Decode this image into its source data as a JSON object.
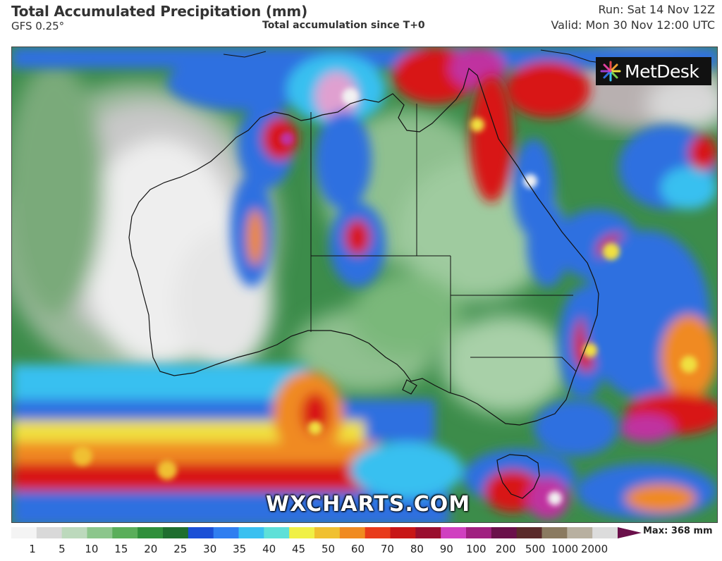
{
  "header": {
    "title": "Total Accumulated Precipitation (mm)",
    "model": "GFS 0.25°",
    "subtitle": "Total accumulation since T+0",
    "run": "Run: Sat 14 Nov 12Z",
    "valid": "Valid: Mon 30 Nov 12:00 UTC"
  },
  "brand": {
    "name": "MetDesk",
    "icon": "metdesk-burst-icon"
  },
  "watermark": "WXCHARTS.COM",
  "legend": {
    "max_label": "Max: 368 mm",
    "ticks": [
      "1",
      "5",
      "10",
      "15",
      "20",
      "25",
      "30",
      "35",
      "40",
      "45",
      "50",
      "60",
      "70",
      "80",
      "90",
      "100",
      "200",
      "500",
      "1000",
      "2000"
    ],
    "colors": [
      "#f4f4f4",
      "#d9d9d9",
      "#bcd9bc",
      "#8cc68c",
      "#5aae5a",
      "#2f8f3a",
      "#1e6e2e",
      "#1a4fd6",
      "#2f7ef0",
      "#39c0f0",
      "#5ee0d8",
      "#f0f046",
      "#f0c030",
      "#f08a20",
      "#e83a1a",
      "#c81616",
      "#9a0e2e",
      "#d040c0",
      "#a02080",
      "#6a104a",
      "#5a2a2a",
      "#8a7a60",
      "#b8b0a0",
      "#dcdcdc"
    ]
  },
  "map": {
    "region": "Australia",
    "colors": {
      "ocean_dry": "#c0c8c0",
      "land_green": "#3c8c4a",
      "light_green": "#7ab87a",
      "white_core": "#f2f2f2",
      "blue": "#2f6fe0",
      "cyan": "#39c0f0",
      "yellow": "#f0e040",
      "orange": "#f08a20",
      "red": "#d81818",
      "magenta": "#c030a0"
    }
  }
}
